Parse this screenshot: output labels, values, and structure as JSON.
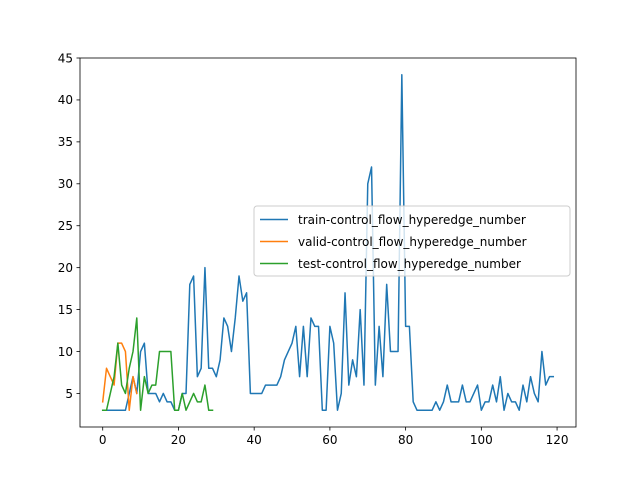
{
  "chart_data": {
    "type": "line",
    "title": "",
    "xlabel": "",
    "ylabel": "",
    "xlim": [
      -6,
      125
    ],
    "ylim": [
      1,
      45
    ],
    "x_ticks": [
      0,
      20,
      40,
      60,
      80,
      100,
      120
    ],
    "y_ticks": [
      5,
      10,
      15,
      20,
      25,
      30,
      35,
      40,
      45
    ],
    "grid": false,
    "legend_position": "center-right",
    "series": [
      {
        "name": "train-control_flow_hyperedge_number",
        "color": "#1f77b4",
        "x": [
          0,
          1,
          2,
          3,
          4,
          5,
          6,
          7,
          8,
          9,
          10,
          11,
          12,
          13,
          14,
          15,
          16,
          17,
          18,
          19,
          20,
          21,
          22,
          23,
          24,
          25,
          26,
          27,
          28,
          29,
          30,
          31,
          32,
          33,
          34,
          35,
          36,
          37,
          38,
          39,
          40,
          41,
          42,
          43,
          44,
          45,
          46,
          47,
          48,
          49,
          50,
          51,
          52,
          53,
          54,
          55,
          56,
          57,
          58,
          59,
          60,
          61,
          62,
          63,
          64,
          65,
          66,
          67,
          68,
          69,
          70,
          71,
          72,
          73,
          74,
          75,
          76,
          77,
          78,
          79,
          80,
          81,
          82,
          83,
          84,
          85,
          86,
          87,
          88,
          89,
          90,
          91,
          92,
          93,
          94,
          95,
          96,
          97,
          98,
          99,
          100,
          101,
          102,
          103,
          104,
          105,
          106,
          107,
          108,
          109,
          110,
          111,
          112,
          113,
          114,
          115,
          116,
          117,
          118,
          119
        ],
        "values": [
          3,
          3,
          3,
          3,
          3,
          3,
          3,
          5,
          7,
          5,
          10,
          11,
          5,
          5,
          5,
          4,
          5,
          4,
          4,
          3,
          3,
          5,
          5,
          18,
          19,
          7,
          8,
          20,
          8,
          8,
          7,
          9,
          14,
          13,
          10,
          14,
          19,
          16,
          17,
          5,
          5,
          5,
          5,
          6,
          6,
          6,
          6,
          7,
          9,
          10,
          11,
          13,
          7,
          13,
          7,
          14,
          13,
          13,
          3,
          3,
          13,
          11,
          3,
          5,
          17,
          6,
          9,
          7,
          15,
          6,
          30,
          32,
          6,
          13,
          7,
          18,
          10,
          10,
          10,
          43,
          13,
          13,
          4,
          3,
          3,
          3,
          3,
          3,
          4,
          3,
          4,
          6,
          4,
          4,
          4,
          6,
          4,
          4,
          5,
          6,
          3,
          4,
          4,
          6,
          4,
          7,
          3,
          5,
          4,
          4,
          3,
          6,
          4,
          7,
          5,
          4,
          10,
          6,
          7,
          7
        ]
      },
      {
        "name": "valid-control_flow_hyperedge_number",
        "color": "#ff7f0e",
        "x": [
          0,
          1,
          2,
          3,
          4,
          5,
          6,
          7,
          8,
          9
        ],
        "values": [
          4,
          8,
          7,
          6,
          11,
          11,
          10,
          3,
          7,
          5
        ]
      },
      {
        "name": "test-control_flow_hyperedge_number",
        "color": "#2ca02c",
        "x": [
          0,
          1,
          2,
          3,
          4,
          5,
          6,
          7,
          8,
          9,
          10,
          11,
          12,
          13,
          14,
          15,
          16,
          17,
          18,
          19,
          20,
          21,
          22,
          23,
          24,
          25,
          26,
          27,
          28,
          29
        ],
        "values": [
          3,
          3,
          5,
          7,
          11,
          6,
          5,
          8,
          10,
          14,
          3,
          7,
          5,
          6,
          6,
          10,
          10,
          10,
          10,
          3,
          3,
          5,
          3,
          4,
          5,
          4,
          4,
          6,
          3,
          3
        ]
      }
    ]
  }
}
